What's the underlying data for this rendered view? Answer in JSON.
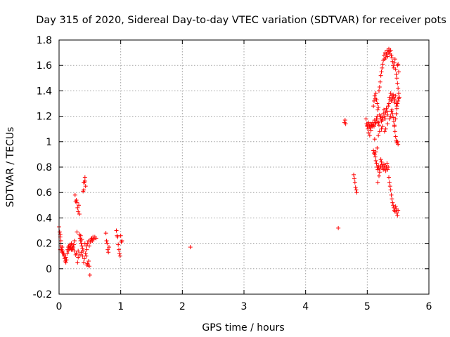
{
  "chart_data": {
    "type": "scatter",
    "title": "Day 315 of 2020, Sidereal Day-to-day VTEC variation (SDTVAR) for receiver pots",
    "xlabel": "GPS time / hours",
    "ylabel": "SDTVAR / TECUs",
    "xlim": [
      0,
      6
    ],
    "ylim": [
      -0.2,
      1.8
    ],
    "xticks": [
      0,
      1,
      2,
      3,
      4,
      5,
      6
    ],
    "xtick_labels": [
      "0",
      "1",
      "2",
      "3",
      "4",
      "5",
      "6"
    ],
    "yticks": [
      -0.2,
      0,
      0.2,
      0.4,
      0.6,
      0.8,
      1,
      1.2,
      1.4,
      1.6,
      1.8
    ],
    "ytick_labels": [
      "-0.2",
      "0",
      "0.2",
      "0.4",
      "0.6",
      "0.8",
      "1",
      "1.2",
      "1.4",
      "1.6",
      "1.8"
    ],
    "grid": true,
    "marker": "+",
    "color": "#ff0000",
    "series": [
      {
        "name": "SDTVAR",
        "points": [
          [
            0.0,
            0.33
          ],
          [
            0.01,
            0.29
          ],
          [
            0.02,
            0.27
          ],
          [
            0.02,
            0.25
          ],
          [
            0.03,
            0.22
          ],
          [
            0.03,
            0.18
          ],
          [
            0.04,
            0.15
          ],
          [
            0.05,
            0.17
          ],
          [
            0.06,
            0.14
          ],
          [
            0.07,
            0.12
          ],
          [
            0.08,
            0.1
          ],
          [
            0.09,
            0.08
          ],
          [
            0.1,
            0.06
          ],
          [
            0.11,
            0.09
          ],
          [
            0.12,
            0.07
          ],
          [
            0.13,
            0.12
          ],
          [
            0.14,
            0.15
          ],
          [
            0.15,
            0.17
          ],
          [
            0.16,
            0.18
          ],
          [
            0.17,
            0.16
          ],
          [
            0.18,
            0.19
          ],
          [
            0.19,
            0.17
          ],
          [
            0.2,
            0.2
          ],
          [
            0.21,
            0.18
          ],
          [
            0.22,
            0.15
          ],
          [
            0.23,
            0.17
          ],
          [
            0.24,
            0.19
          ],
          [
            0.25,
            0.22
          ],
          [
            0.26,
            0.58
          ],
          [
            0.27,
            0.53
          ],
          [
            0.28,
            0.54
          ],
          [
            0.29,
            0.52
          ],
          [
            0.29,
            0.29
          ],
          [
            0.3,
            0.48
          ],
          [
            0.31,
            0.45
          ],
          [
            0.32,
            0.5
          ],
          [
            0.33,
            0.43
          ],
          [
            0.33,
            0.27
          ],
          [
            0.34,
            0.24
          ],
          [
            0.35,
            0.22
          ],
          [
            0.36,
            0.2
          ],
          [
            0.37,
            0.18
          ],
          [
            0.38,
            0.16
          ],
          [
            0.39,
            0.14
          ],
          [
            0.39,
            0.61
          ],
          [
            0.4,
            0.62
          ],
          [
            0.4,
            0.68
          ],
          [
            0.41,
            0.68
          ],
          [
            0.42,
            0.69
          ],
          [
            0.42,
            0.72
          ],
          [
            0.43,
            0.65
          ],
          [
            0.44,
            0.18
          ],
          [
            0.45,
            0.15
          ],
          [
            0.46,
            0.04
          ],
          [
            0.47,
            0.03
          ],
          [
            0.48,
            0.06
          ],
          [
            0.49,
            0.02
          ],
          [
            0.5,
            -0.05
          ],
          [
            0.51,
            0.21
          ],
          [
            0.52,
            0.23
          ],
          [
            0.53,
            0.24
          ],
          [
            0.54,
            0.22
          ],
          [
            0.55,
            0.25
          ],
          [
            0.56,
            0.23
          ],
          [
            0.58,
            0.25
          ],
          [
            0.6,
            0.24
          ],
          [
            0.02,
            0.15
          ],
          [
            0.05,
            0.13
          ],
          [
            0.08,
            0.11
          ],
          [
            0.11,
            0.05
          ],
          [
            0.15,
            0.14
          ],
          [
            0.18,
            0.16
          ],
          [
            0.22,
            0.16
          ],
          [
            0.25,
            0.14
          ],
          [
            0.28,
            0.12
          ],
          [
            0.3,
            0.05
          ],
          [
            0.31,
            0.09
          ],
          [
            0.34,
            0.11
          ],
          [
            0.36,
            0.13
          ],
          [
            0.38,
            0.1
          ],
          [
            0.4,
            0.05
          ],
          [
            0.41,
            0.08
          ],
          [
            0.43,
            0.12
          ],
          [
            0.44,
            0.1
          ],
          [
            0.46,
            0.2
          ],
          [
            0.48,
            0.22
          ],
          [
            0.49,
            0.18
          ],
          [
            0.35,
            0.26
          ],
          [
            0.37,
            0.23
          ],
          [
            0.31,
            0.14
          ],
          [
            0.27,
            0.11
          ],
          [
            0.2,
            0.15
          ],
          [
            0.42,
            0.2
          ],
          [
            0.45,
            0.03
          ],
          [
            0.76,
            0.28
          ],
          [
            0.77,
            0.22
          ],
          [
            0.78,
            0.2
          ],
          [
            0.79,
            0.15
          ],
          [
            0.8,
            0.13
          ],
          [
            0.81,
            0.17
          ],
          [
            0.93,
            0.3
          ],
          [
            0.94,
            0.26
          ],
          [
            0.95,
            0.25
          ],
          [
            0.96,
            0.19
          ],
          [
            0.97,
            0.15
          ],
          [
            0.98,
            0.12
          ],
          [
            0.99,
            0.1
          ],
          [
            1.0,
            0.26
          ],
          [
            1.01,
            0.21
          ],
          [
            1.02,
            0.22
          ],
          [
            2.13,
            0.17
          ],
          [
            4.53,
            0.32
          ],
          [
            4.63,
            1.15
          ],
          [
            4.64,
            1.17
          ],
          [
            4.65,
            1.14
          ],
          [
            4.78,
            0.74
          ],
          [
            4.79,
            0.71
          ],
          [
            4.8,
            0.68
          ],
          [
            4.81,
            0.64
          ],
          [
            4.82,
            0.62
          ],
          [
            4.83,
            0.6
          ],
          [
            4.98,
            1.18
          ],
          [
            4.99,
            1.14
          ],
          [
            5.0,
            1.12
          ],
          [
            5.01,
            1.1
          ],
          [
            5.02,
            1.15
          ],
          [
            5.03,
            1.13
          ],
          [
            5.04,
            1.12
          ],
          [
            5.05,
            1.11
          ],
          [
            5.06,
            1.14
          ],
          [
            5.07,
            1.13
          ],
          [
            5.08,
            1.12
          ],
          [
            5.09,
            1.15
          ],
          [
            5.1,
            1.13
          ],
          [
            5.11,
            1.12
          ],
          [
            5.12,
            1.17
          ],
          [
            5.13,
            1.14
          ],
          [
            5.14,
            1.15
          ],
          [
            5.15,
            1.18
          ],
          [
            5.16,
            1.2
          ],
          [
            5.17,
            1.16
          ],
          [
            5.18,
            1.15
          ],
          [
            5.19,
            1.13
          ],
          [
            5.2,
            1.21
          ],
          [
            5.21,
            1.18
          ],
          [
            5.22,
            1.2
          ],
          [
            5.23,
            1.16
          ],
          [
            5.24,
            1.19
          ],
          [
            5.25,
            1.17
          ],
          [
            5.26,
            1.22
          ],
          [
            5.27,
            1.25
          ],
          [
            5.28,
            1.2
          ],
          [
            5.29,
            1.18
          ],
          [
            5.3,
            1.23
          ],
          [
            5.31,
            1.26
          ],
          [
            5.32,
            1.24
          ],
          [
            5.33,
            1.21
          ],
          [
            5.34,
            1.28
          ],
          [
            5.35,
            1.3
          ],
          [
            5.36,
            1.35
          ],
          [
            5.37,
            1.33
          ],
          [
            5.38,
            1.38
          ],
          [
            5.39,
            1.32
          ],
          [
            5.4,
            1.36
          ],
          [
            5.41,
            1.34
          ],
          [
            5.42,
            1.37
          ],
          [
            5.43,
            1.35
          ],
          [
            5.44,
            1.31
          ],
          [
            5.45,
            1.33
          ],
          [
            5.46,
            1.36
          ],
          [
            5.47,
            1.3
          ],
          [
            5.48,
            1.28
          ],
          [
            5.0,
            1.13
          ],
          [
            5.02,
            1.07
          ],
          [
            5.04,
            1.05
          ],
          [
            5.06,
            1.09
          ],
          [
            5.08,
            1.12
          ],
          [
            5.1,
            0.93
          ],
          [
            5.11,
            0.91
          ],
          [
            5.12,
            0.9
          ],
          [
            5.13,
            0.88
          ],
          [
            5.14,
            0.85
          ],
          [
            5.15,
            0.83
          ],
          [
            5.16,
            0.8
          ],
          [
            5.17,
            0.78
          ],
          [
            5.18,
            0.81
          ],
          [
            5.19,
            0.79
          ],
          [
            5.2,
            0.76
          ],
          [
            5.21,
            0.79
          ],
          [
            5.22,
            0.81
          ],
          [
            5.23,
            0.84
          ],
          [
            5.24,
            0.82
          ],
          [
            5.25,
            0.8
          ],
          [
            5.26,
            0.78
          ],
          [
            5.27,
            0.82
          ],
          [
            5.28,
            0.79
          ],
          [
            5.29,
            0.81
          ],
          [
            5.3,
            0.77
          ],
          [
            5.31,
            0.8
          ],
          [
            5.32,
            0.83
          ],
          [
            5.33,
            0.78
          ],
          [
            5.34,
            0.8
          ],
          [
            5.35,
            0.72
          ],
          [
            5.36,
            0.68
          ],
          [
            5.37,
            0.65
          ],
          [
            5.38,
            0.62
          ],
          [
            5.39,
            0.58
          ],
          [
            5.4,
            0.55
          ],
          [
            5.41,
            0.52
          ],
          [
            5.42,
            0.5
          ],
          [
            5.43,
            0.48
          ],
          [
            5.44,
            0.46
          ],
          [
            5.45,
            0.45
          ],
          [
            5.46,
            0.49
          ],
          [
            5.47,
            0.47
          ],
          [
            5.48,
            0.44
          ],
          [
            5.49,
            0.42
          ],
          [
            5.5,
            0.46
          ],
          [
            5.17,
            0.68
          ],
          [
            5.19,
            0.73
          ],
          [
            5.22,
            0.86
          ],
          [
            5.14,
            0.92
          ],
          [
            5.16,
            0.95
          ],
          [
            5.1,
            1.28
          ],
          [
            5.11,
            1.32
          ],
          [
            5.12,
            1.36
          ],
          [
            5.13,
            1.34
          ],
          [
            5.14,
            1.38
          ],
          [
            5.15,
            1.33
          ],
          [
            5.16,
            1.3
          ],
          [
            5.17,
            1.25
          ],
          [
            5.18,
            1.27
          ],
          [
            5.19,
            1.4
          ],
          [
            5.2,
            1.43
          ],
          [
            5.21,
            1.47
          ],
          [
            5.22,
            1.52
          ],
          [
            5.23,
            1.55
          ],
          [
            5.24,
            1.58
          ],
          [
            5.25,
            1.61
          ],
          [
            5.26,
            1.64
          ],
          [
            5.27,
            1.68
          ],
          [
            5.28,
            1.65
          ],
          [
            5.29,
            1.7
          ],
          [
            5.3,
            1.66
          ],
          [
            5.31,
            1.69
          ],
          [
            5.32,
            1.72
          ],
          [
            5.33,
            1.67
          ],
          [
            5.34,
            1.7
          ],
          [
            5.35,
            1.73
          ],
          [
            5.36,
            1.71
          ],
          [
            5.37,
            1.69
          ],
          [
            5.38,
            1.72
          ],
          [
            5.39,
            1.68
          ],
          [
            5.4,
            1.66
          ],
          [
            5.41,
            1.63
          ],
          [
            5.42,
            1.6
          ],
          [
            5.43,
            1.58
          ],
          [
            5.44,
            1.62
          ],
          [
            5.45,
            1.65
          ],
          [
            5.46,
            1.57
          ],
          [
            5.47,
            1.53
          ],
          [
            5.48,
            1.5
          ],
          [
            5.49,
            1.46
          ],
          [
            5.5,
            1.42
          ],
          [
            5.51,
            1.38
          ],
          [
            5.52,
            1.35
          ],
          [
            5.5,
            1.61
          ],
          [
            5.51,
            1.55
          ],
          [
            5.49,
            1.6
          ],
          [
            5.4,
            1.25
          ],
          [
            5.41,
            1.22
          ],
          [
            5.42,
            1.19
          ],
          [
            5.43,
            1.16
          ],
          [
            5.44,
            1.12
          ],
          [
            5.45,
            1.08
          ],
          [
            5.46,
            1.04
          ],
          [
            5.47,
            1.01
          ],
          [
            5.48,
            0.99
          ],
          [
            5.49,
            1.0
          ],
          [
            5.5,
            0.98
          ],
          [
            5.44,
            1.13
          ],
          [
            5.46,
            1.18
          ],
          [
            5.47,
            1.22
          ],
          [
            5.48,
            1.26
          ],
          [
            5.49,
            1.3
          ],
          [
            5.5,
            1.32
          ],
          [
            5.51,
            1.34
          ],
          [
            5.38,
            1.2
          ],
          [
            5.39,
            1.24
          ],
          [
            5.36,
            1.18
          ],
          [
            5.33,
            1.14
          ],
          [
            5.3,
            1.1
          ],
          [
            5.28,
            1.08
          ],
          [
            5.25,
            1.12
          ],
          [
            5.23,
            1.1
          ],
          [
            5.2,
            1.08
          ],
          [
            5.18,
            1.05
          ],
          [
            5.12,
            1.02
          ]
        ]
      }
    ]
  }
}
